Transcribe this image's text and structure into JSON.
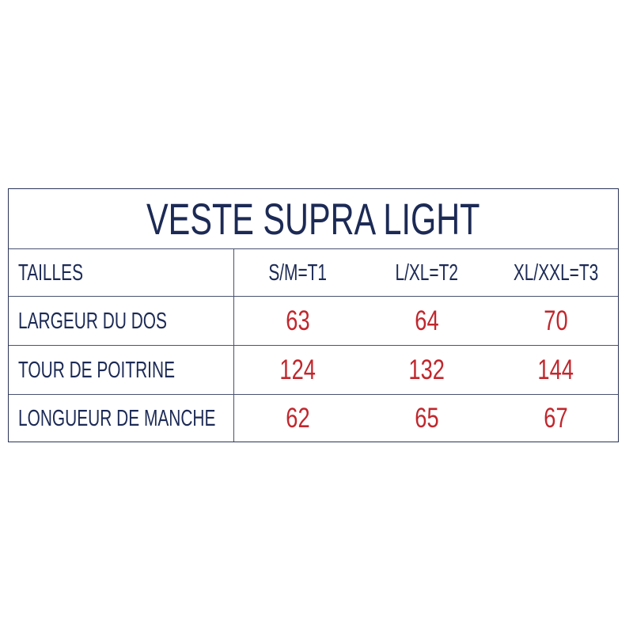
{
  "title": "VESTE SUPRA LIGHT",
  "header": {
    "label": "TAILLES",
    "sizes": [
      "S/M=T1",
      "L/XL=T2",
      "XL/XXL=T3"
    ]
  },
  "rows": [
    {
      "label": "LARGEUR DU DOS",
      "values": [
        "63",
        "64",
        "70"
      ]
    },
    {
      "label": "TOUR DE POITRINE",
      "values": [
        "124",
        "132",
        "144"
      ]
    },
    {
      "label": "LONGUEUR DE MANCHE",
      "values": [
        "62",
        "65",
        "67"
      ]
    }
  ],
  "colors": {
    "text": "#1c2a55",
    "values": "#c1272d",
    "border": "#2a3558"
  }
}
